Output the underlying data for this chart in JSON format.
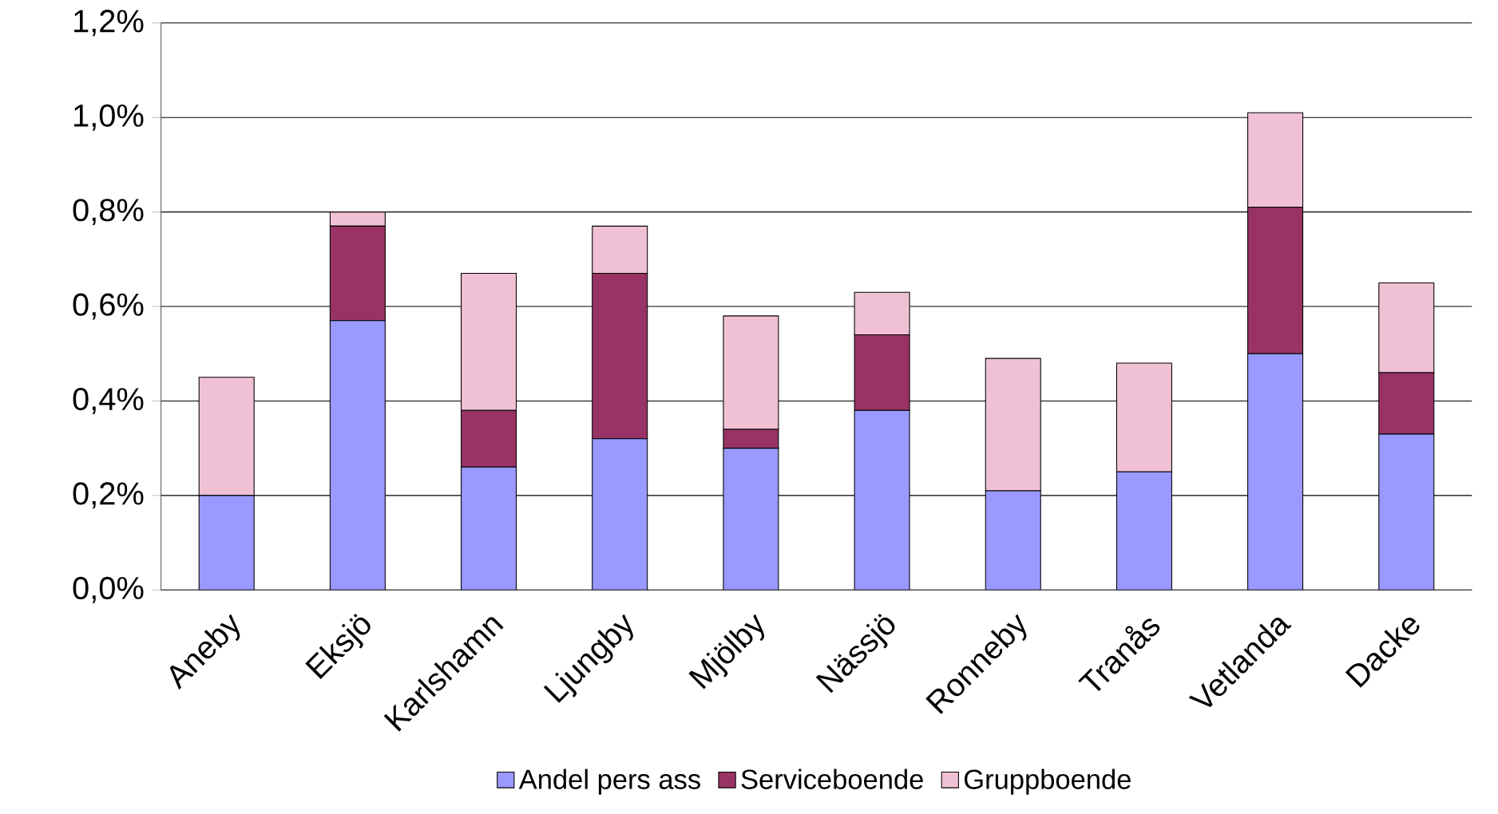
{
  "chart_data": {
    "type": "bar",
    "stacked": true,
    "categories": [
      "Aneby",
      "Eksjö",
      "Karlshamn",
      "Ljungby",
      "Mjölby",
      "Nässjö",
      "Ronneby",
      "Tranås",
      "Vetlanda",
      "Dacke"
    ],
    "series": [
      {
        "name": "Andel pers ass",
        "color": "#9999ff",
        "values": [
          0.2,
          0.57,
          0.26,
          0.32,
          0.3,
          0.38,
          0.21,
          0.25,
          0.5,
          0.33
        ]
      },
      {
        "name": "Serviceboende",
        "color": "#993366",
        "values": [
          0,
          0.2,
          0.12,
          0.35,
          0.04,
          0.16,
          0,
          0,
          0.31,
          0.13
        ]
      },
      {
        "name": "Gruppboende",
        "color": "#f0c0d4",
        "values": [
          0.25,
          0.03,
          0.29,
          0.1,
          0.24,
          0.09,
          0.28,
          0.23,
          0.2,
          0.19
        ]
      }
    ],
    "ylim": [
      0,
      1.2
    ],
    "yticks": [
      {
        "value": 0,
        "label": "0,0%"
      },
      {
        "value": 0.2,
        "label": "0,2%"
      },
      {
        "value": 0.4,
        "label": "0,4%"
      },
      {
        "value": 0.6,
        "label": "0,6%"
      },
      {
        "value": 0.8,
        "label": "0,8%"
      },
      {
        "value": 1.0,
        "label": "1,0%"
      },
      {
        "value": 1.2,
        "label": "1,2%"
      }
    ],
    "grid": "y",
    "legend": "bottom"
  }
}
